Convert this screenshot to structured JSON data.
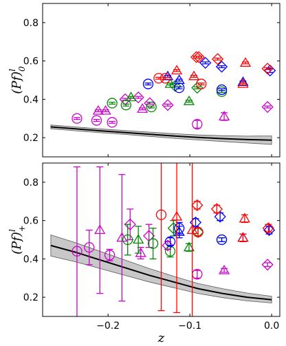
{
  "chart_data": [
    {
      "type": "scatter",
      "panel": "top",
      "ylabel": "(Pf)",
      "ylabel_super": "l",
      "ylabel_sub": "0",
      "ylim": [
        0.1,
        0.9
      ],
      "xlim": [
        -0.28,
        0.01
      ],
      "yticks": [
        0.2,
        0.4,
        0.6,
        0.8
      ],
      "ytick_labels": [
        "0.2",
        "0.4",
        "0.6",
        "0.8"
      ],
      "xticks": [
        -0.2,
        -0.1,
        0.0
      ],
      "xtick_labels": [],
      "band": {
        "x": [
          -0.27,
          -0.24,
          -0.21,
          -0.18,
          -0.15,
          -0.12,
          -0.09,
          -0.06,
          -0.03,
          0.0
        ],
        "center": [
          0.256,
          0.246,
          0.236,
          0.227,
          0.218,
          0.209,
          0.201,
          0.195,
          0.19,
          0.187
        ],
        "lower": [
          0.246,
          0.236,
          0.226,
          0.217,
          0.207,
          0.197,
          0.188,
          0.18,
          0.172,
          0.165
        ],
        "upper": [
          0.266,
          0.256,
          0.246,
          0.237,
          0.229,
          0.221,
          0.214,
          0.21,
          0.208,
          0.209
        ]
      },
      "points": [
        {
          "x": -0.238,
          "y": 0.3,
          "err": 0.005,
          "marker": "circle",
          "color": "#cc00cc"
        },
        {
          "x": -0.214,
          "y": 0.29,
          "err": 0.005,
          "marker": "circle",
          "color": "#cc00cc"
        },
        {
          "x": -0.195,
          "y": 0.28,
          "err": 0.005,
          "marker": "circle",
          "color": "#cc00cc"
        },
        {
          "x": -0.212,
          "y": 0.34,
          "err": 0.005,
          "marker": "triangle",
          "color": "#cc00cc"
        },
        {
          "x": -0.203,
          "y": 0.34,
          "err": 0.005,
          "marker": "triangle",
          "color": "#cc00cc"
        },
        {
          "x": -0.179,
          "y": 0.4,
          "err": 0.005,
          "marker": "diamond",
          "color": "#cc00cc"
        },
        {
          "x": -0.163,
          "y": 0.41,
          "err": 0.005,
          "marker": "diamond",
          "color": "#cc00cc"
        },
        {
          "x": -0.158,
          "y": 0.35,
          "err": 0.005,
          "marker": "triangle",
          "color": "#cc00cc"
        },
        {
          "x": -0.149,
          "y": 0.38,
          "err": 0.005,
          "marker": "diamond",
          "color": "#cc00cc"
        },
        {
          "x": -0.127,
          "y": 0.37,
          "err": 0.005,
          "marker": "diamond",
          "color": "#cc00cc"
        },
        {
          "x": -0.091,
          "y": 0.27,
          "err": 0.02,
          "marker": "circle",
          "color": "#cc00cc"
        },
        {
          "x": -0.058,
          "y": 0.31,
          "err": 0.02,
          "marker": "triangle",
          "color": "#cc00cc"
        },
        {
          "x": -0.005,
          "y": 0.36,
          "err": 0.005,
          "marker": "diamond",
          "color": "#cc00cc"
        },
        {
          "x": -0.195,
          "y": 0.38,
          "err": 0.005,
          "marker": "circle",
          "color": "#008800"
        },
        {
          "x": -0.178,
          "y": 0.37,
          "err": 0.005,
          "marker": "circle",
          "color": "#008800"
        },
        {
          "x": -0.172,
          "y": 0.41,
          "err": 0.005,
          "marker": "triangle",
          "color": "#008800"
        },
        {
          "x": -0.147,
          "y": 0.36,
          "err": 0.005,
          "marker": "circle",
          "color": "#008800"
        },
        {
          "x": -0.124,
          "y": 0.48,
          "err": 0.005,
          "marker": "triangle",
          "color": "#008800"
        },
        {
          "x": -0.118,
          "y": 0.47,
          "err": 0.005,
          "marker": "diamond",
          "color": "#008800"
        },
        {
          "x": -0.101,
          "y": 0.39,
          "err": 0.005,
          "marker": "triangle",
          "color": "#008800"
        },
        {
          "x": -0.091,
          "y": 0.46,
          "err": 0.005,
          "marker": "diamond",
          "color": "#008800"
        },
        {
          "x": -0.061,
          "y": 0.44,
          "err": 0.005,
          "marker": "circle",
          "color": "#008800"
        },
        {
          "x": -0.151,
          "y": 0.48,
          "err": 0.005,
          "marker": "circle",
          "color": "#0000ff"
        },
        {
          "x": -0.127,
          "y": 0.52,
          "err": 0.005,
          "marker": "triangle",
          "color": "#0000ff"
        },
        {
          "x": -0.113,
          "y": 0.46,
          "err": 0.005,
          "marker": "circle",
          "color": "#0000ff"
        },
        {
          "x": -0.113,
          "y": 0.5,
          "err": 0.005,
          "marker": "triangle",
          "color": "#0000ff"
        },
        {
          "x": -0.081,
          "y": 0.59,
          "err": 0.005,
          "marker": "diamond",
          "color": "#0000ff"
        },
        {
          "x": -0.061,
          "y": 0.57,
          "err": 0.005,
          "marker": "diamond",
          "color": "#0000ff"
        },
        {
          "x": -0.061,
          "y": 0.45,
          "err": 0.005,
          "marker": "circle",
          "color": "#0000ff"
        },
        {
          "x": -0.035,
          "y": 0.49,
          "err": 0.005,
          "marker": "triangle",
          "color": "#0000ff"
        },
        {
          "x": -0.002,
          "y": 0.55,
          "err": 0.01,
          "marker": "diamond",
          "color": "#0000ff"
        },
        {
          "x": -0.138,
          "y": 0.51,
          "err": 0.005,
          "marker": "circle",
          "color": "#ff0000"
        },
        {
          "x": -0.13,
          "y": 0.51,
          "err": 0.005,
          "marker": "circle",
          "color": "#ff0000"
        },
        {
          "x": -0.116,
          "y": 0.55,
          "err": 0.005,
          "marker": "triangle",
          "color": "#ff0000"
        },
        {
          "x": -0.095,
          "y": 0.52,
          "err": 0.005,
          "marker": "triangle",
          "color": "#ff0000"
        },
        {
          "x": -0.092,
          "y": 0.62,
          "err": 0.005,
          "marker": "diamond",
          "color": "#ff0000"
        },
        {
          "x": -0.089,
          "y": 0.62,
          "err": 0.005,
          "marker": "diamond",
          "color": "#ff0000"
        },
        {
          "x": -0.086,
          "y": 0.48,
          "err": 0.005,
          "marker": "circle",
          "color": "#ff0000"
        },
        {
          "x": -0.066,
          "y": 0.61,
          "err": 0.005,
          "marker": "diamond",
          "color": "#ff0000"
        },
        {
          "x": -0.035,
          "y": 0.48,
          "err": 0.005,
          "marker": "triangle",
          "color": "#ff0000"
        },
        {
          "x": -0.032,
          "y": 0.59,
          "err": 0.005,
          "marker": "triangle",
          "color": "#ff0000"
        },
        {
          "x": -0.005,
          "y": 0.56,
          "err": 0.005,
          "marker": "diamond",
          "color": "#ff0000"
        }
      ]
    },
    {
      "type": "scatter",
      "panel": "bottom",
      "xlabel": "z",
      "ylabel": "(Pf)",
      "ylabel_super": "l",
      "ylabel_sub": "+",
      "ylim": [
        0.1,
        0.9
      ],
      "xlim": [
        -0.28,
        0.01
      ],
      "yticks": [
        0.2,
        0.4,
        0.6,
        0.8
      ],
      "ytick_labels": [
        "0.2",
        "0.4",
        "0.6",
        "0.8"
      ],
      "xticks": [
        -0.2,
        -0.1,
        0.0
      ],
      "xtick_labels": [
        "−0.2",
        "−0.1",
        "0.0"
      ],
      "band": {
        "x": [
          -0.27,
          -0.24,
          -0.21,
          -0.18,
          -0.15,
          -0.12,
          -0.09,
          -0.06,
          -0.03,
          0.0
        ],
        "center": [
          0.47,
          0.435,
          0.395,
          0.355,
          0.315,
          0.28,
          0.245,
          0.22,
          0.2,
          0.187
        ],
        "lower": [
          0.415,
          0.385,
          0.35,
          0.315,
          0.28,
          0.25,
          0.22,
          0.198,
          0.181,
          0.17
        ],
        "upper": [
          0.525,
          0.485,
          0.44,
          0.395,
          0.35,
          0.31,
          0.272,
          0.245,
          0.222,
          0.205
        ]
      },
      "points": [
        {
          "x": -0.238,
          "y": 0.44,
          "err": 0.44,
          "marker": "circle",
          "color": "#cc00cc"
        },
        {
          "x": -0.223,
          "y": 0.46,
          "err": 0.09,
          "marker": "circle",
          "color": "#cc00cc"
        },
        {
          "x": -0.21,
          "y": 0.55,
          "err": 0.33,
          "marker": "triangle",
          "color": "#cc00cc"
        },
        {
          "x": -0.198,
          "y": 0.42,
          "err": 0.03,
          "marker": "circle",
          "color": "#cc00cc"
        },
        {
          "x": -0.183,
          "y": 0.51,
          "err": 0.33,
          "marker": "triangle",
          "color": "#cc00cc"
        },
        {
          "x": -0.173,
          "y": 0.58,
          "err": 0.08,
          "marker": "diamond",
          "color": "#cc00cc"
        },
        {
          "x": -0.16,
          "y": 0.43,
          "err": 0.03,
          "marker": "triangle",
          "color": "#cc00cc"
        },
        {
          "x": -0.15,
          "y": 0.52,
          "err": 0.06,
          "marker": "diamond",
          "color": "#cc00cc"
        },
        {
          "x": -0.127,
          "y": 0.47,
          "err": 0.02,
          "marker": "diamond",
          "color": "#cc00cc"
        },
        {
          "x": -0.091,
          "y": 0.32,
          "err": 0.02,
          "marker": "circle",
          "color": "#cc00cc"
        },
        {
          "x": -0.058,
          "y": 0.34,
          "err": 0.01,
          "marker": "triangle",
          "color": "#cc00cc"
        },
        {
          "x": -0.005,
          "y": 0.37,
          "err": 0.01,
          "marker": "diamond",
          "color": "#cc00cc"
        },
        {
          "x": -0.176,
          "y": 0.5,
          "err": 0.08,
          "marker": "circle",
          "color": "#008800"
        },
        {
          "x": -0.163,
          "y": 0.5,
          "err": 0.07,
          "marker": "triangle",
          "color": "#008800"
        },
        {
          "x": -0.145,
          "y": 0.48,
          "err": 0.08,
          "marker": "circle",
          "color": "#008800"
        },
        {
          "x": -0.124,
          "y": 0.44,
          "err": 0.03,
          "marker": "circle",
          "color": "#008800"
        },
        {
          "x": -0.12,
          "y": 0.56,
          "err": 0.04,
          "marker": "diamond",
          "color": "#008800"
        },
        {
          "x": -0.101,
          "y": 0.46,
          "err": 0.02,
          "marker": "triangle",
          "color": "#008800"
        },
        {
          "x": -0.09,
          "y": 0.54,
          "err": 0.02,
          "marker": "diamond",
          "color": "#008800"
        },
        {
          "x": -0.061,
          "y": 0.5,
          "err": 0.01,
          "marker": "circle",
          "color": "#008800"
        },
        {
          "x": -0.124,
          "y": 0.49,
          "err": 0.02,
          "marker": "circle",
          "color": "#0000ff"
        },
        {
          "x": -0.113,
          "y": 0.54,
          "err": 0.03,
          "marker": "triangle",
          "color": "#0000ff"
        },
        {
          "x": -0.113,
          "y": 0.56,
          "err": 0.03,
          "marker": "circle",
          "color": "#0000ff"
        },
        {
          "x": -0.093,
          "y": 0.59,
          "err": 0.02,
          "marker": "diamond",
          "color": "#0000ff"
        },
        {
          "x": -0.063,
          "y": 0.62,
          "err": 0.02,
          "marker": "diamond",
          "color": "#0000ff"
        },
        {
          "x": -0.061,
          "y": 0.5,
          "err": 0.01,
          "marker": "circle",
          "color": "#0000ff"
        },
        {
          "x": -0.035,
          "y": 0.51,
          "err": 0.02,
          "marker": "triangle",
          "color": "#0000ff"
        },
        {
          "x": -0.003,
          "y": 0.55,
          "err": 0.02,
          "marker": "diamond",
          "color": "#0000ff"
        },
        {
          "x": -0.135,
          "y": 0.63,
          "err": 0.5,
          "marker": "circle",
          "color": "#ff0000"
        },
        {
          "x": -0.116,
          "y": 0.62,
          "err": 0.5,
          "marker": "triangle",
          "color": "#ff0000"
        },
        {
          "x": -0.097,
          "y": 0.55,
          "err": 0.5,
          "marker": "triangle",
          "color": "#ff0000"
        },
        {
          "x": -0.091,
          "y": 0.68,
          "err": 0.02,
          "marker": "diamond",
          "color": "#ff0000"
        },
        {
          "x": -0.09,
          "y": 0.54,
          "err": 0.02,
          "marker": "circle",
          "color": "#ff0000"
        },
        {
          "x": -0.067,
          "y": 0.66,
          "err": 0.02,
          "marker": "diamond",
          "color": "#ff0000"
        },
        {
          "x": -0.035,
          "y": 0.51,
          "err": 0.02,
          "marker": "triangle",
          "color": "#ff0000"
        },
        {
          "x": -0.033,
          "y": 0.61,
          "err": 0.02,
          "marker": "triangle",
          "color": "#ff0000"
        },
        {
          "x": -0.004,
          "y": 0.56,
          "err": 0.02,
          "marker": "diamond",
          "color": "#ff0000"
        }
      ]
    }
  ]
}
